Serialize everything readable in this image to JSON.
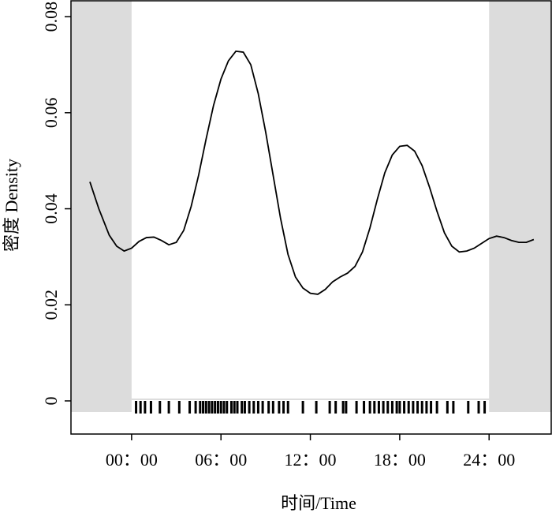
{
  "chart_data": {
    "type": "line",
    "xlabel": "时间/Time",
    "ylabel": "密度 Density",
    "xlim": [
      -4.07,
      28.17
    ],
    "ylim": [
      -0.0069,
      0.0833
    ],
    "xticks": [
      {
        "value": 0,
        "label": "00：00"
      },
      {
        "value": 6,
        "label": "06：00"
      },
      {
        "value": 12,
        "label": "12：00"
      },
      {
        "value": 18,
        "label": "18：00"
      },
      {
        "value": 24,
        "label": "24：00"
      }
    ],
    "yticks": [
      0,
      0.02,
      0.04,
      0.06,
      0.08
    ],
    "shaded": [
      [
        -4.07,
        0
      ],
      [
        24,
        28.17
      ]
    ],
    "shade_color": "#dcdcdc",
    "series": [
      {
        "color": "#000000",
        "x": [
          -2.8,
          -2.2,
          -1.5,
          -1,
          -0.5,
          0,
          0.5,
          1,
          1.5,
          2,
          2.5,
          3,
          3.5,
          4,
          4.5,
          5,
          5.5,
          6,
          6.5,
          7,
          7.5,
          8,
          8.5,
          9,
          9.5,
          10,
          10.5,
          11,
          11.5,
          12,
          12.5,
          13,
          13.5,
          14,
          14.5,
          15,
          15.5,
          16,
          16.5,
          17,
          17.5,
          18,
          18.5,
          19,
          19.5,
          20,
          20.5,
          21,
          21.5,
          22,
          22.5,
          23,
          23.5,
          24,
          24.5,
          25,
          25.5,
          26,
          26.5,
          27
        ],
        "values": [
          0.0456,
          0.04,
          0.0345,
          0.0322,
          0.0312,
          0.0318,
          0.0332,
          0.034,
          0.0341,
          0.0334,
          0.0325,
          0.033,
          0.0355,
          0.0405,
          0.047,
          0.0545,
          0.0615,
          0.067,
          0.0708,
          0.0728,
          0.0726,
          0.07,
          0.064,
          0.056,
          0.047,
          0.038,
          0.0305,
          0.0258,
          0.0235,
          0.0224,
          0.0222,
          0.0232,
          0.0248,
          0.0258,
          0.0266,
          0.028,
          0.031,
          0.036,
          0.042,
          0.0475,
          0.0512,
          0.053,
          0.0532,
          0.052,
          0.049,
          0.0445,
          0.0395,
          0.035,
          0.0322,
          0.031,
          0.0312,
          0.0318,
          0.0328,
          0.0338,
          0.0343,
          0.034,
          0.0334,
          0.033,
          0.033,
          0.0336
        ]
      }
    ],
    "rug": [
      0.3,
      0.6,
      0.9,
      1.3,
      1.9,
      2.5,
      3.2,
      3.9,
      4.3,
      4.6,
      4.8,
      5.0,
      5.2,
      5.4,
      5.6,
      5.8,
      6.0,
      6.2,
      6.4,
      6.7,
      6.9,
      7.1,
      7.4,
      7.6,
      7.9,
      8.2,
      8.5,
      8.8,
      9.2,
      9.5,
      9.9,
      10.2,
      10.5,
      11.5,
      12.4,
      13.3,
      13.7,
      14.2,
      14.4,
      15.1,
      15.6,
      16.0,
      16.3,
      16.6,
      16.9,
      17.2,
      17.5,
      17.8,
      18.0,
      18.3,
      18.6,
      18.9,
      19.2,
      19.5,
      19.8,
      20.1,
      20.5,
      21.2,
      21.6,
      22.6,
      23.3,
      23.7
    ]
  }
}
